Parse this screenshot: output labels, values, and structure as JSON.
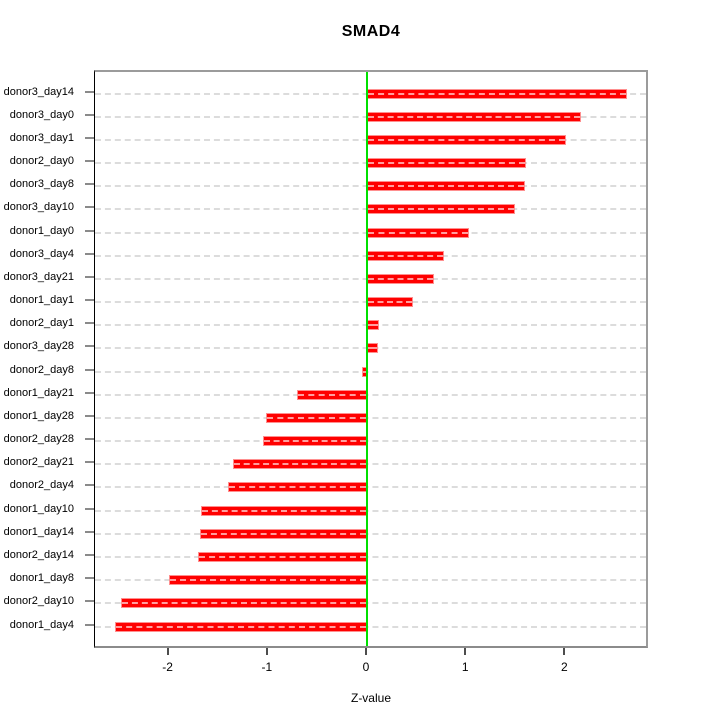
{
  "title": "SMAD4",
  "xlabel": "Z-value",
  "x_tick_labels": [
    "-2",
    "-1",
    "0",
    "1",
    "2"
  ],
  "x_tick_values": [
    -2,
    -1,
    0,
    1,
    2
  ],
  "colors": {
    "bar_fill": "#ff0000",
    "bar_border": "#ff8f8f",
    "zero_line": "#00e000",
    "grid": "#dcdcdc",
    "grid_on_bar": "#ff9e9e",
    "box": "#9b9b9b",
    "left_axis": "#000000",
    "text": "#000000"
  },
  "chart_data": {
    "type": "bar",
    "orientation": "horizontal",
    "title": "SMAD4",
    "xlabel": "Z-value",
    "ylabel": "",
    "xlim": [
      -2.77,
      2.83
    ],
    "grid": true,
    "grid_style": "dashed",
    "zero_line": true,
    "legend": false,
    "categories": [
      "donor3_day14",
      "donor3_day0",
      "donor3_day1",
      "donor2_day0",
      "donor3_day8",
      "donor3_day10",
      "donor1_day0",
      "donor3_day4",
      "donor3_day21",
      "donor1_day1",
      "donor2_day1",
      "donor3_day28",
      "donor2_day8",
      "donor1_day21",
      "donor1_day28",
      "donor2_day28",
      "donor2_day21",
      "donor2_day4",
      "donor1_day10",
      "donor1_day14",
      "donor2_day14",
      "donor1_day8",
      "donor2_day10",
      "donor1_day4"
    ],
    "values": [
      2.62,
      2.16,
      2.01,
      1.6,
      1.59,
      1.49,
      1.03,
      0.78,
      0.68,
      0.46,
      0.12,
      0.11,
      -0.05,
      -0.71,
      -1.02,
      -1.05,
      -1.35,
      -1.4,
      -1.67,
      -1.68,
      -1.7,
      -2.0,
      -2.48,
      -2.54
    ]
  }
}
